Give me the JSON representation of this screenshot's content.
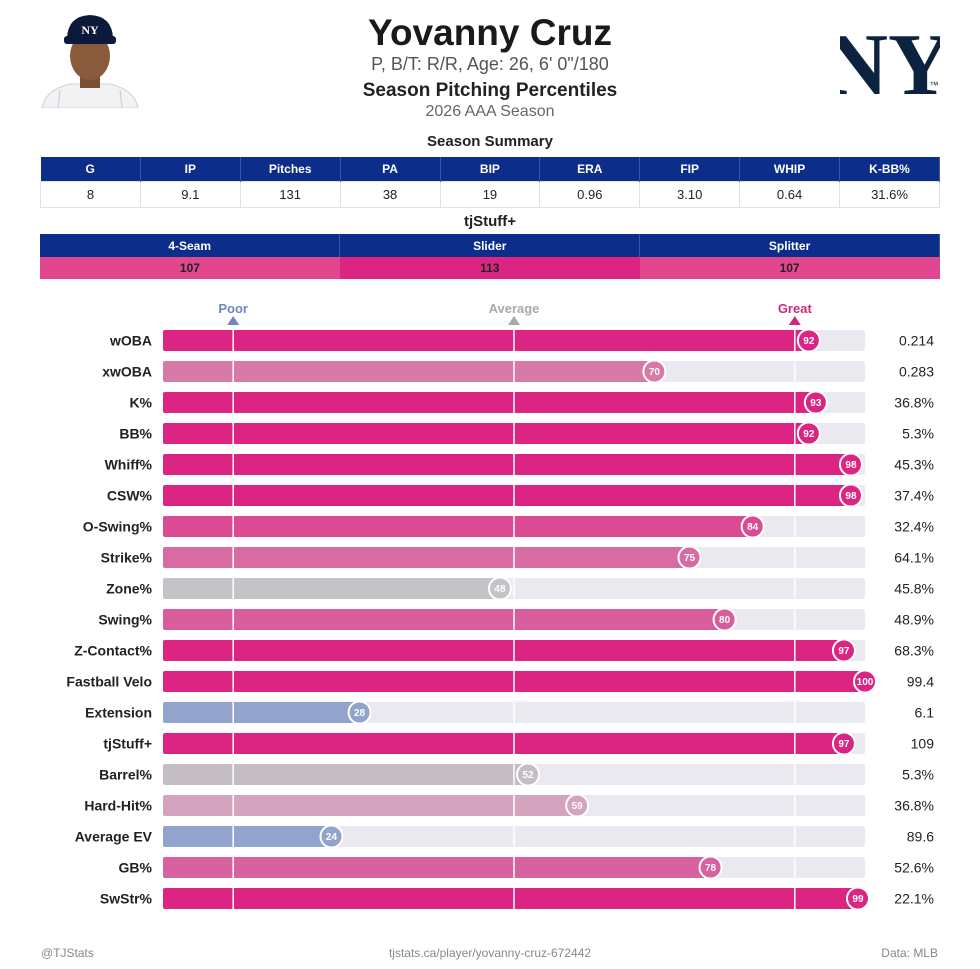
{
  "header": {
    "name": "Yovanny Cruz",
    "bio": "P, B/T: R/R, Age: 26, 6' 0\"/180",
    "title": "Season Pitching Percentiles",
    "subtitle": "2026 AAA Season",
    "logo_text": "NY",
    "logo_tm": "™"
  },
  "summary": {
    "title": "Season Summary",
    "columns": [
      "G",
      "IP",
      "Pitches",
      "PA",
      "BIP",
      "ERA",
      "FIP",
      "WHIP",
      "K-BB%"
    ],
    "values": [
      "8",
      "9.1",
      "131",
      "38",
      "19",
      "0.96",
      "3.10",
      "0.64",
      "31.6%"
    ]
  },
  "tjstuff": {
    "title": "tjStuff+",
    "columns": [
      "4-Seam",
      "Slider",
      "Splitter"
    ],
    "values": [
      "107",
      "113",
      "107"
    ],
    "colors": [
      "#e0478f",
      "#dc2583",
      "#e0478f"
    ]
  },
  "chart_data": {
    "type": "bar",
    "xlim": [
      0,
      100
    ],
    "markers": [
      {
        "label": "Poor",
        "value": 10,
        "color": "#6f86bd"
      },
      {
        "label": "Average",
        "value": 50,
        "color": "#a9a9a9"
      },
      {
        "label": "Great",
        "value": 90,
        "color": "#cc2a7e"
      }
    ],
    "categories": [
      "wOBA",
      "xwOBA",
      "K%",
      "BB%",
      "Whiff%",
      "CSW%",
      "O-Swing%",
      "Strike%",
      "Zone%",
      "Swing%",
      "Z-Contact%",
      "Fastball Velo",
      "Extension",
      "tjStuff+",
      "Barrel%",
      "Hard-Hit%",
      "Average EV",
      "GB%",
      "SwStr%"
    ],
    "percentiles": [
      92,
      70,
      93,
      92,
      98,
      98,
      84,
      75,
      48,
      80,
      97,
      100,
      28,
      97,
      52,
      59,
      24,
      78,
      99
    ],
    "values": [
      "0.214",
      "0.283",
      "36.8%",
      "5.3%",
      "45.3%",
      "37.4%",
      "32.4%",
      "64.1%",
      "45.8%",
      "48.9%",
      "68.3%",
      "99.4",
      "6.1",
      "109",
      "5.3%",
      "36.8%",
      "89.6",
      "52.6%",
      "22.1%"
    ],
    "colors": [
      "#dc2583",
      "#d87aa8",
      "#dc2583",
      "#dc2583",
      "#dc2583",
      "#dc2583",
      "#dc4a93",
      "#d86ca2",
      "#c4c4c8",
      "#d95c9c",
      "#dc2583",
      "#dc2583",
      "#93a4cc",
      "#dc2583",
      "#c4bec4",
      "#d4a3bd",
      "#93a4cc",
      "#d861a0",
      "#dc2583"
    ]
  },
  "footer": {
    "left": "@TJStats",
    "center": "tjstats.ca/player/yovanny-cruz-672442",
    "right": "Data: MLB"
  }
}
